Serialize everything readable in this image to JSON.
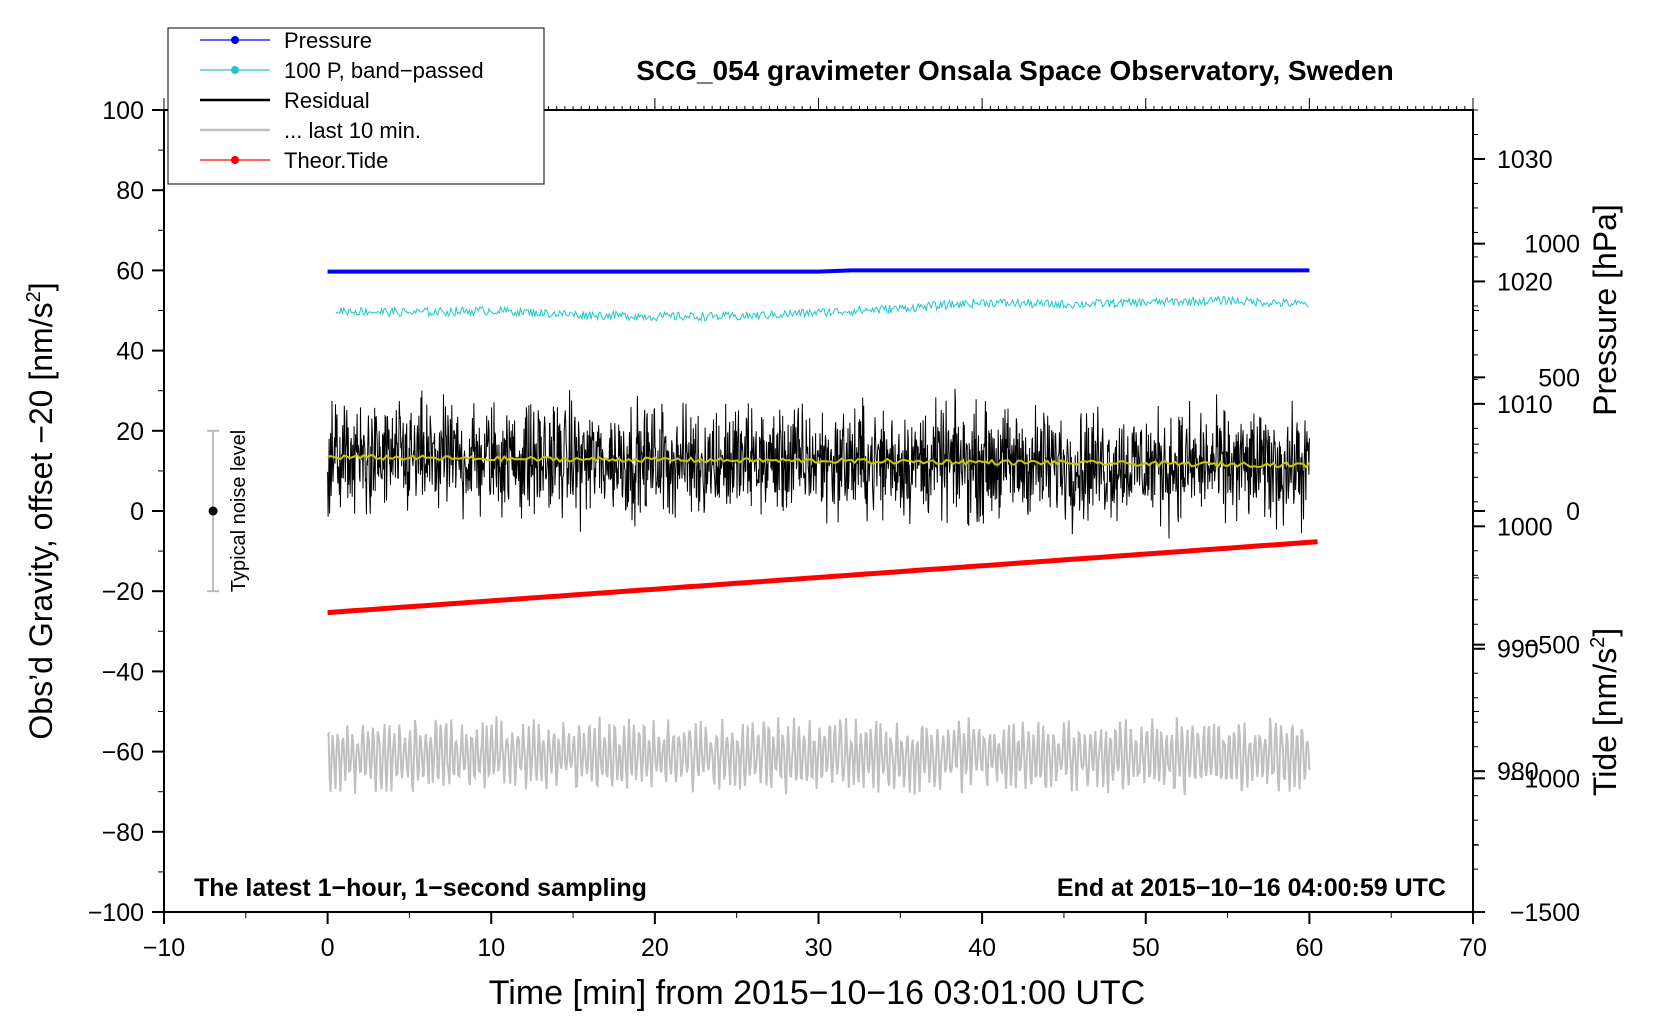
{
  "chart_data": {
    "type": "line",
    "title": "SCG_054 gravimeter Onsala Space Observatory, Sweden",
    "xlabel": "Time [min] from 2015−10−16 03:01:00 UTC",
    "ylabel_left": "Obs’d Gravity, offset −20 [nm/s",
    "ylabel_left_sup": "2",
    "ylabel_left_end": "]",
    "ylabel_pressure": "Pressure [hPa]",
    "ylabel_tide": "Tide [nm/s",
    "ylabel_tide_sup": "2",
    "ylabel_tide_end": "]",
    "note_left": "The latest 1−hour, 1−second sampling",
    "note_right": "End at 2015−10−16 04:00:59 UTC",
    "noise_label": "Typical noise level",
    "noise_bar": {
      "x": -7,
      "center": 0,
      "low": -20,
      "high": 20
    },
    "xlim": [
      -10,
      70
    ],
    "ylim": [
      -100,
      100
    ],
    "pressure_lim": [
      968.5,
      1034
    ],
    "tide_lim": [
      -1500,
      1500
    ],
    "x_ticks": [
      -10,
      0,
      10,
      20,
      30,
      40,
      50,
      60,
      70
    ],
    "x_tick_labels": [
      "−10",
      "0",
      "10",
      "20",
      "30",
      "40",
      "50",
      "60",
      "70"
    ],
    "y_ticks": [
      -100,
      -80,
      -60,
      -40,
      -20,
      0,
      20,
      40,
      60,
      80,
      100
    ],
    "y_tick_labels": [
      "−100",
      "−80",
      "−60",
      "−40",
      "−20",
      "0",
      "20",
      "40",
      "60",
      "80",
      "100"
    ],
    "pressure_ticks": [
      980,
      990,
      1000,
      1010,
      1020,
      1030
    ],
    "pressure_tick_labels": [
      "980",
      "990",
      "1000",
      "1010",
      "1020",
      "1030"
    ],
    "tide_ticks": [
      -1500,
      -1000,
      -500,
      0,
      500,
      1000
    ],
    "tide_tick_labels": [
      "−1500",
      "−1000",
      "−500",
      "0",
      "500",
      "1000"
    ],
    "legend_position": "top-left",
    "legend": [
      {
        "label": "Pressure",
        "color": "#0000ff",
        "marker": true
      },
      {
        "label": "100 P, band−passed",
        "color": "#20c8c8",
        "marker": true
      },
      {
        "label": "Residual",
        "color": "#000000",
        "marker": false
      },
      {
        "label": "... last 10 min.",
        "color": "#c0c0c0",
        "marker": false
      },
      {
        "label": "Theor.Tide",
        "color": "#ff0000",
        "marker": true
      }
    ],
    "series": [
      {
        "name": "Pressure",
        "color": "#0000ff",
        "axis": "pressure",
        "x": [
          0,
          10,
          20,
          30,
          32,
          40,
          50,
          60
        ],
        "y": [
          1020.8,
          1020.8,
          1020.8,
          1020.8,
          1020.9,
          1020.9,
          1020.9,
          1020.9
        ]
      },
      {
        "name": "100 P, band−passed",
        "color": "#20c8c8",
        "axis": "left",
        "x": [
          0,
          5,
          10,
          15,
          20,
          25,
          30,
          35,
          40,
          45,
          50,
          55,
          60
        ],
        "y": [
          50,
          49.5,
          50,
          49,
          48.5,
          48.5,
          49.5,
          50.5,
          52,
          51.5,
          52,
          52.5,
          51.5
        ]
      },
      {
        "name": "Residual",
        "color": "#000000",
        "axis": "left",
        "x": [
          0,
          10,
          20,
          30,
          40,
          50,
          60
        ],
        "y": [
          13,
          13,
          12.5,
          12.5,
          12,
          11.5,
          11
        ],
        "noise_amplitude": 10
      },
      {
        "name": "Residual (smoothed)",
        "color": "#c8c800",
        "axis": "left",
        "x": [
          0,
          10,
          20,
          30,
          40,
          50,
          60
        ],
        "y": [
          13.5,
          13,
          12.8,
          12.5,
          12.2,
          11.8,
          11.5
        ]
      },
      {
        "name": "... last 10 min.",
        "color": "#c0c0c0",
        "axis": "left",
        "x": [
          0,
          60
        ],
        "y": [
          -61,
          -61
        ],
        "noise_amplitude": 10
      },
      {
        "name": "Theor.Tide",
        "color": "#ff0000",
        "axis": "tide",
        "x": [
          0,
          60.5
        ],
        "y": [
          -380,
          -115
        ]
      }
    ]
  }
}
